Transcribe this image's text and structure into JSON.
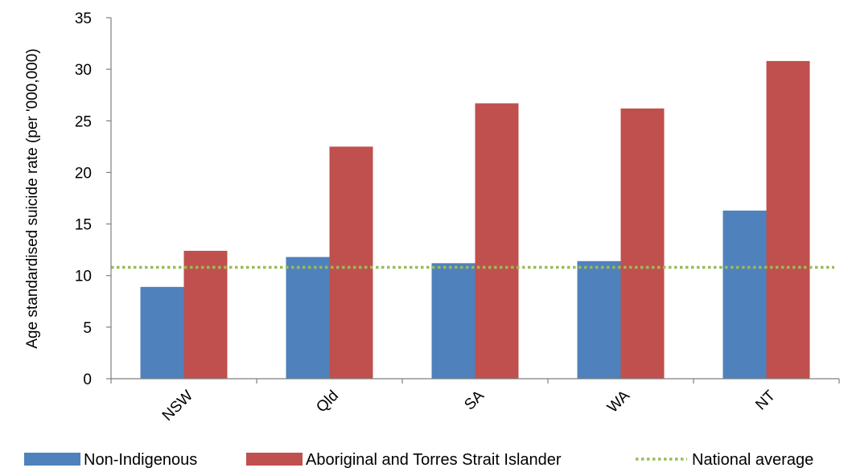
{
  "chart_data": {
    "type": "bar",
    "title": "",
    "xlabel": "",
    "ylabel": "Age standardised suicide rate (per '000,000)",
    "ylim": [
      0,
      35
    ],
    "yticks": [
      0,
      5,
      10,
      15,
      20,
      25,
      30,
      35
    ],
    "categories": [
      "NSW",
      "Qld",
      "SA",
      "WA",
      "NT"
    ],
    "series": [
      {
        "name": "Non-Indigenous",
        "color": "#4f81bd",
        "values": [
          8.9,
          11.8,
          11.2,
          11.4,
          16.3
        ]
      },
      {
        "name": "Aboriginal and Torres Strait Islander",
        "color": "#c0504d",
        "values": [
          12.4,
          22.5,
          26.7,
          26.2,
          30.8
        ]
      }
    ],
    "reference_lines": [
      {
        "name": "National average",
        "value": 10.8,
        "color": "#9bbb59",
        "style": "dotted"
      }
    ],
    "grid": false,
    "legend_position": "bottom"
  }
}
